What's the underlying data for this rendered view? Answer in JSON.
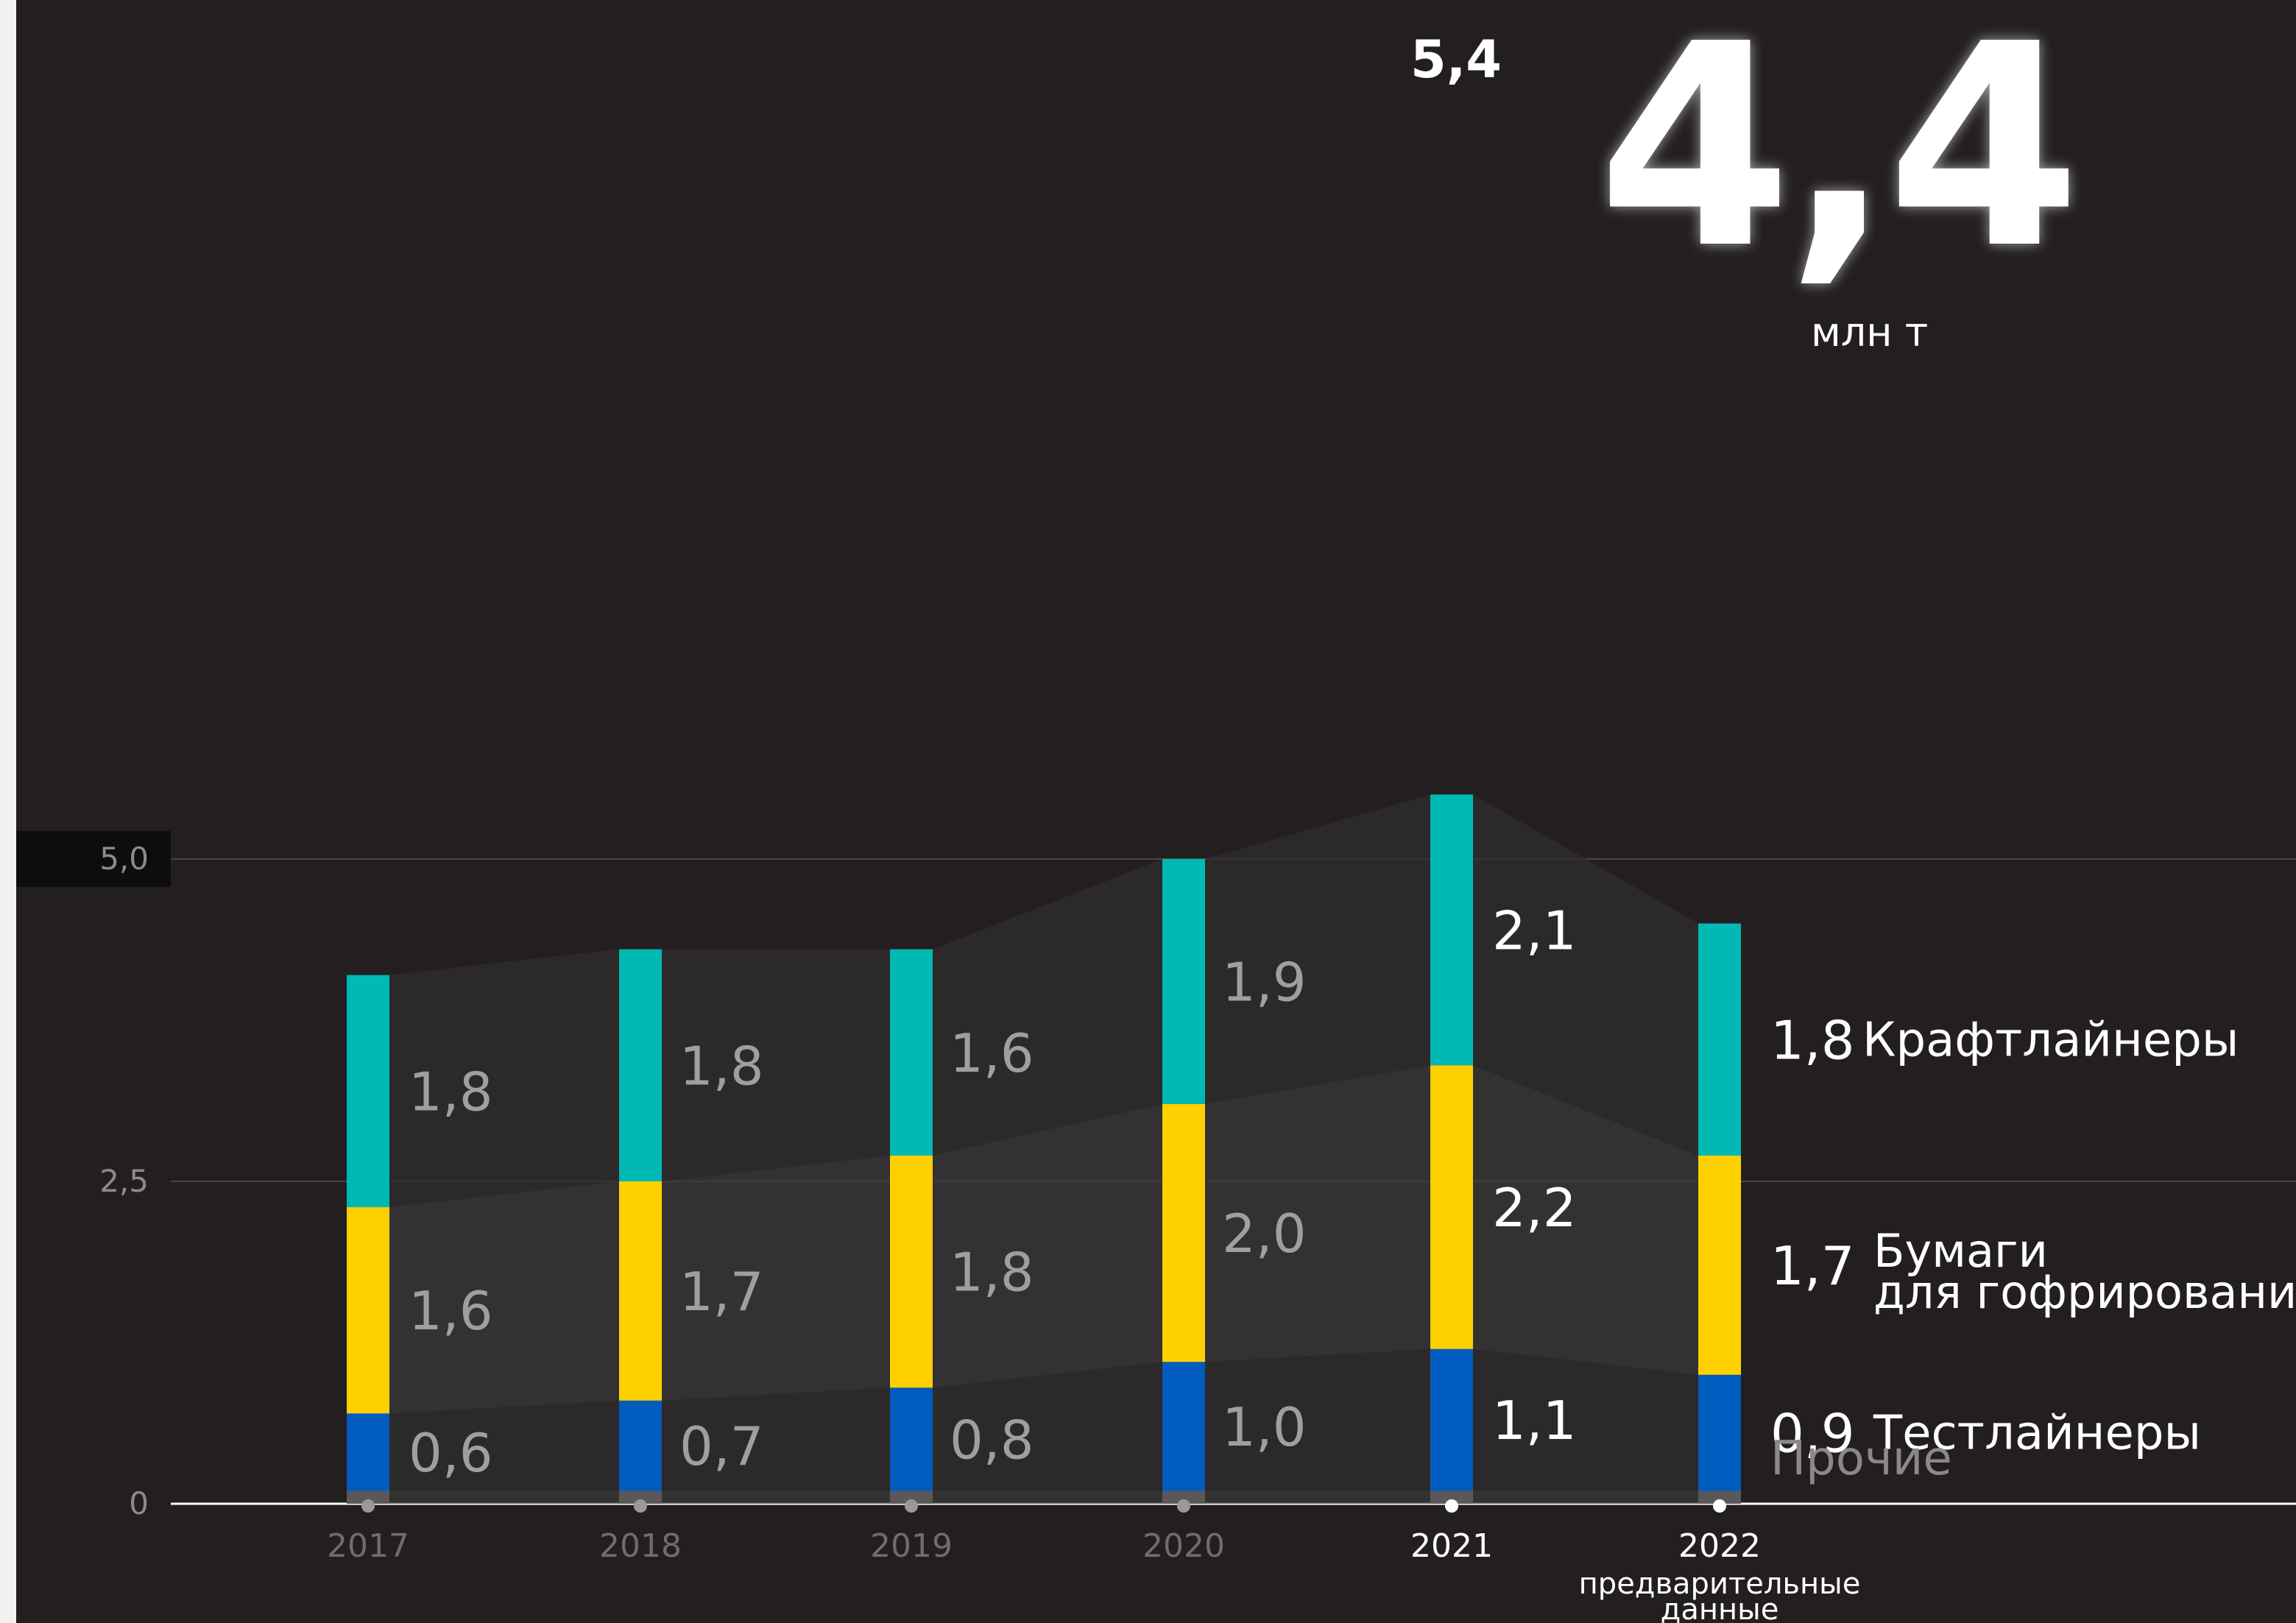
{
  "chart_data": {
    "type": "bar",
    "stacked": true,
    "categories": [
      "2017",
      "2018",
      "2019",
      "2020",
      "2021",
      "2022"
    ],
    "category_note": {
      "category": "2022",
      "text": "предварительные данные"
    },
    "highlighted_categories": [
      "2021",
      "2022"
    ],
    "series": [
      {
        "name": "Прочие",
        "values": [
          0.1,
          0.1,
          0.1,
          0.1,
          0.1,
          0.1
        ],
        "color": "#5a5858"
      },
      {
        "name": "Тестлайнеры",
        "values": [
          0.6,
          0.7,
          0.8,
          1.0,
          1.1,
          0.9
        ],
        "labels": [
          "0,6",
          "0,7",
          "0,8",
          "1,0",
          "1,1",
          "0,9"
        ],
        "color": "#005cbf"
      },
      {
        "name": "Бумаги для гофрирования",
        "values": [
          1.6,
          1.7,
          1.8,
          2.0,
          2.2,
          1.7
        ],
        "labels": [
          "1,6",
          "1,7",
          "1,8",
          "2,0",
          "2,2",
          "1,7"
        ],
        "color": "#ffd000"
      },
      {
        "name": "Крафтлайнеры",
        "values": [
          1.8,
          1.8,
          1.6,
          1.9,
          2.1,
          1.8
        ],
        "labels": [
          "1,8",
          "1,8",
          "1,6",
          "1,9",
          "2,1",
          "1,8"
        ],
        "color": "#00b8b4"
      }
    ],
    "legend_labels": {
      "other": "Прочие",
      "testliner": "Тестлайнеры",
      "fluting_line1": "Бумаги",
      "fluting_line2": "для гофрирования",
      "kraftliner": "Крафтлайнеры"
    },
    "ylim": [
      0,
      5.4
    ],
    "yticks": [
      {
        "value": 0,
        "label": "0"
      },
      {
        "value": 2.5,
        "label": "2,5"
      },
      {
        "value": 5.0,
        "label": "5,0"
      }
    ],
    "annotations": [
      {
        "category": "2021",
        "text": "5,4"
      }
    ],
    "grid": true
  },
  "headline": {
    "total": "4,4",
    "unit": "млн т"
  }
}
